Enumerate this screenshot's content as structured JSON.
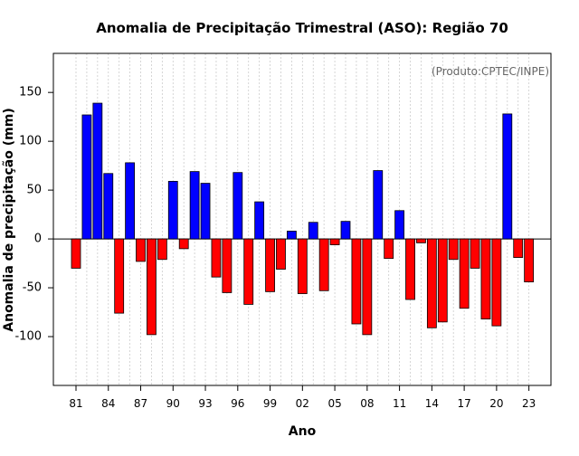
{
  "chart_data": {
    "type": "bar",
    "title": "Anomalia de Precipitação Trimestral (ASO): Região 70",
    "credit": "(Produto:CPTEC/INPE)",
    "xlabel": "Ano",
    "ylabel": "Anomalia de precipitação (mm)",
    "ylim": [
      -150,
      190
    ],
    "yticks": [
      -100,
      -50,
      0,
      50,
      100,
      150
    ],
    "xtick_labels": [
      "81",
      "84",
      "87",
      "90",
      "93",
      "96",
      "99",
      "02",
      "05",
      "08",
      "11",
      "14",
      "17",
      "20",
      "23"
    ],
    "categories": [
      1981,
      1982,
      1983,
      1984,
      1985,
      1986,
      1987,
      1988,
      1989,
      1990,
      1991,
      1992,
      1993,
      1994,
      1995,
      1996,
      1997,
      1998,
      1999,
      2000,
      2001,
      2002,
      2003,
      2004,
      2005,
      2006,
      2007,
      2008,
      2009,
      2010,
      2011,
      2012,
      2013,
      2014,
      2015,
      2016,
      2017,
      2018,
      2019,
      2020,
      2021,
      2022,
      2023
    ],
    "values": [
      -30,
      127,
      139,
      67,
      -76,
      78,
      -23,
      -98,
      -21,
      59,
      -10,
      69,
      57,
      -39,
      -55,
      68,
      -67,
      38,
      -54,
      -31,
      8,
      -56,
      17,
      -53,
      -6,
      18,
      -87,
      -98,
      70,
      -20,
      29,
      -62,
      -4,
      -91,
      -85,
      -21,
      -71,
      -30,
      -82,
      -89,
      128,
      -19,
      -44
    ],
    "grid": true,
    "colors": {
      "positive": "#0000ff",
      "negative": "#ff0000",
      "grid": "#cccccc",
      "axis": "#000000",
      "credit": "#666666"
    }
  }
}
